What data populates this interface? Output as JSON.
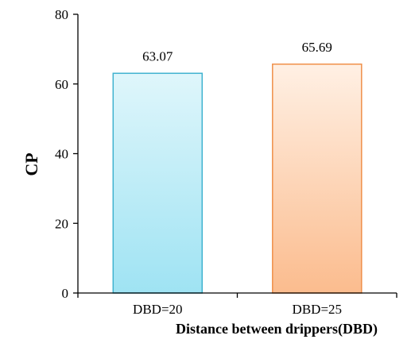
{
  "chart_data": {
    "type": "bar",
    "title": "",
    "xlabel": "Distance between drippers(DBD)",
    "ylabel": "CP",
    "categories": [
      "DBD=20",
      "DBD=25"
    ],
    "values": [
      63.07,
      65.69
    ],
    "data_labels": [
      "63.07",
      "65.69"
    ],
    "ylim": [
      0,
      80
    ],
    "yticks": [
      0,
      20,
      40,
      60,
      80
    ],
    "grid": false,
    "legend": "none",
    "bar_colors": [
      {
        "top": "#dff6fb",
        "bottom": "#9fe3f3",
        "stroke": "#3fb2cf"
      },
      {
        "top": "#fff0e4",
        "bottom": "#fbbc8e",
        "stroke": "#f0904a"
      }
    ]
  }
}
